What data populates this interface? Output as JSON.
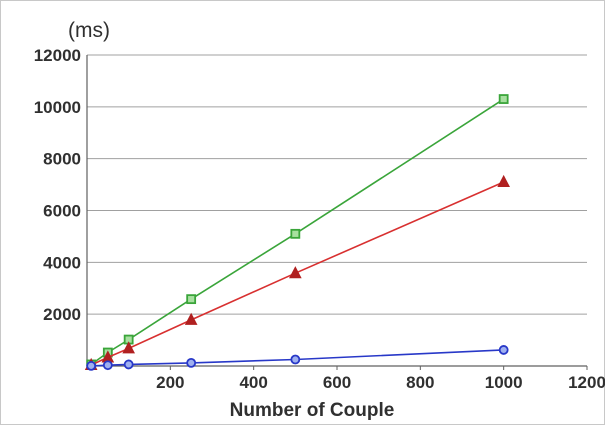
{
  "chart_data": {
    "type": "line",
    "title": "",
    "xlabel": "Number of Couple",
    "ylabel": "(ms)",
    "xlim": [
      0,
      1200
    ],
    "ylim": [
      0,
      12000
    ],
    "x_ticks": [
      200,
      400,
      600,
      800,
      1000,
      1200
    ],
    "y_ticks": [
      2000,
      4000,
      6000,
      8000,
      10000,
      12000
    ],
    "grid": "horizontal",
    "legend": "none",
    "series": [
      {
        "color": "#3aa53a",
        "marker": "square",
        "x": [
          10,
          50,
          100,
          250,
          500,
          1000
        ],
        "y": [
          60,
          520,
          1020,
          2580,
          5100,
          10300
        ]
      },
      {
        "color": "#d83030",
        "marker": "triangle",
        "x": [
          10,
          50,
          100,
          250,
          500,
          1000
        ],
        "y": [
          40,
          330,
          680,
          1780,
          3580,
          7100
        ]
      },
      {
        "color": "#2838c8",
        "marker": "circle",
        "x": [
          10,
          50,
          100,
          250,
          500,
          1000
        ],
        "y": [
          5,
          30,
          60,
          120,
          250,
          620
        ]
      }
    ]
  }
}
